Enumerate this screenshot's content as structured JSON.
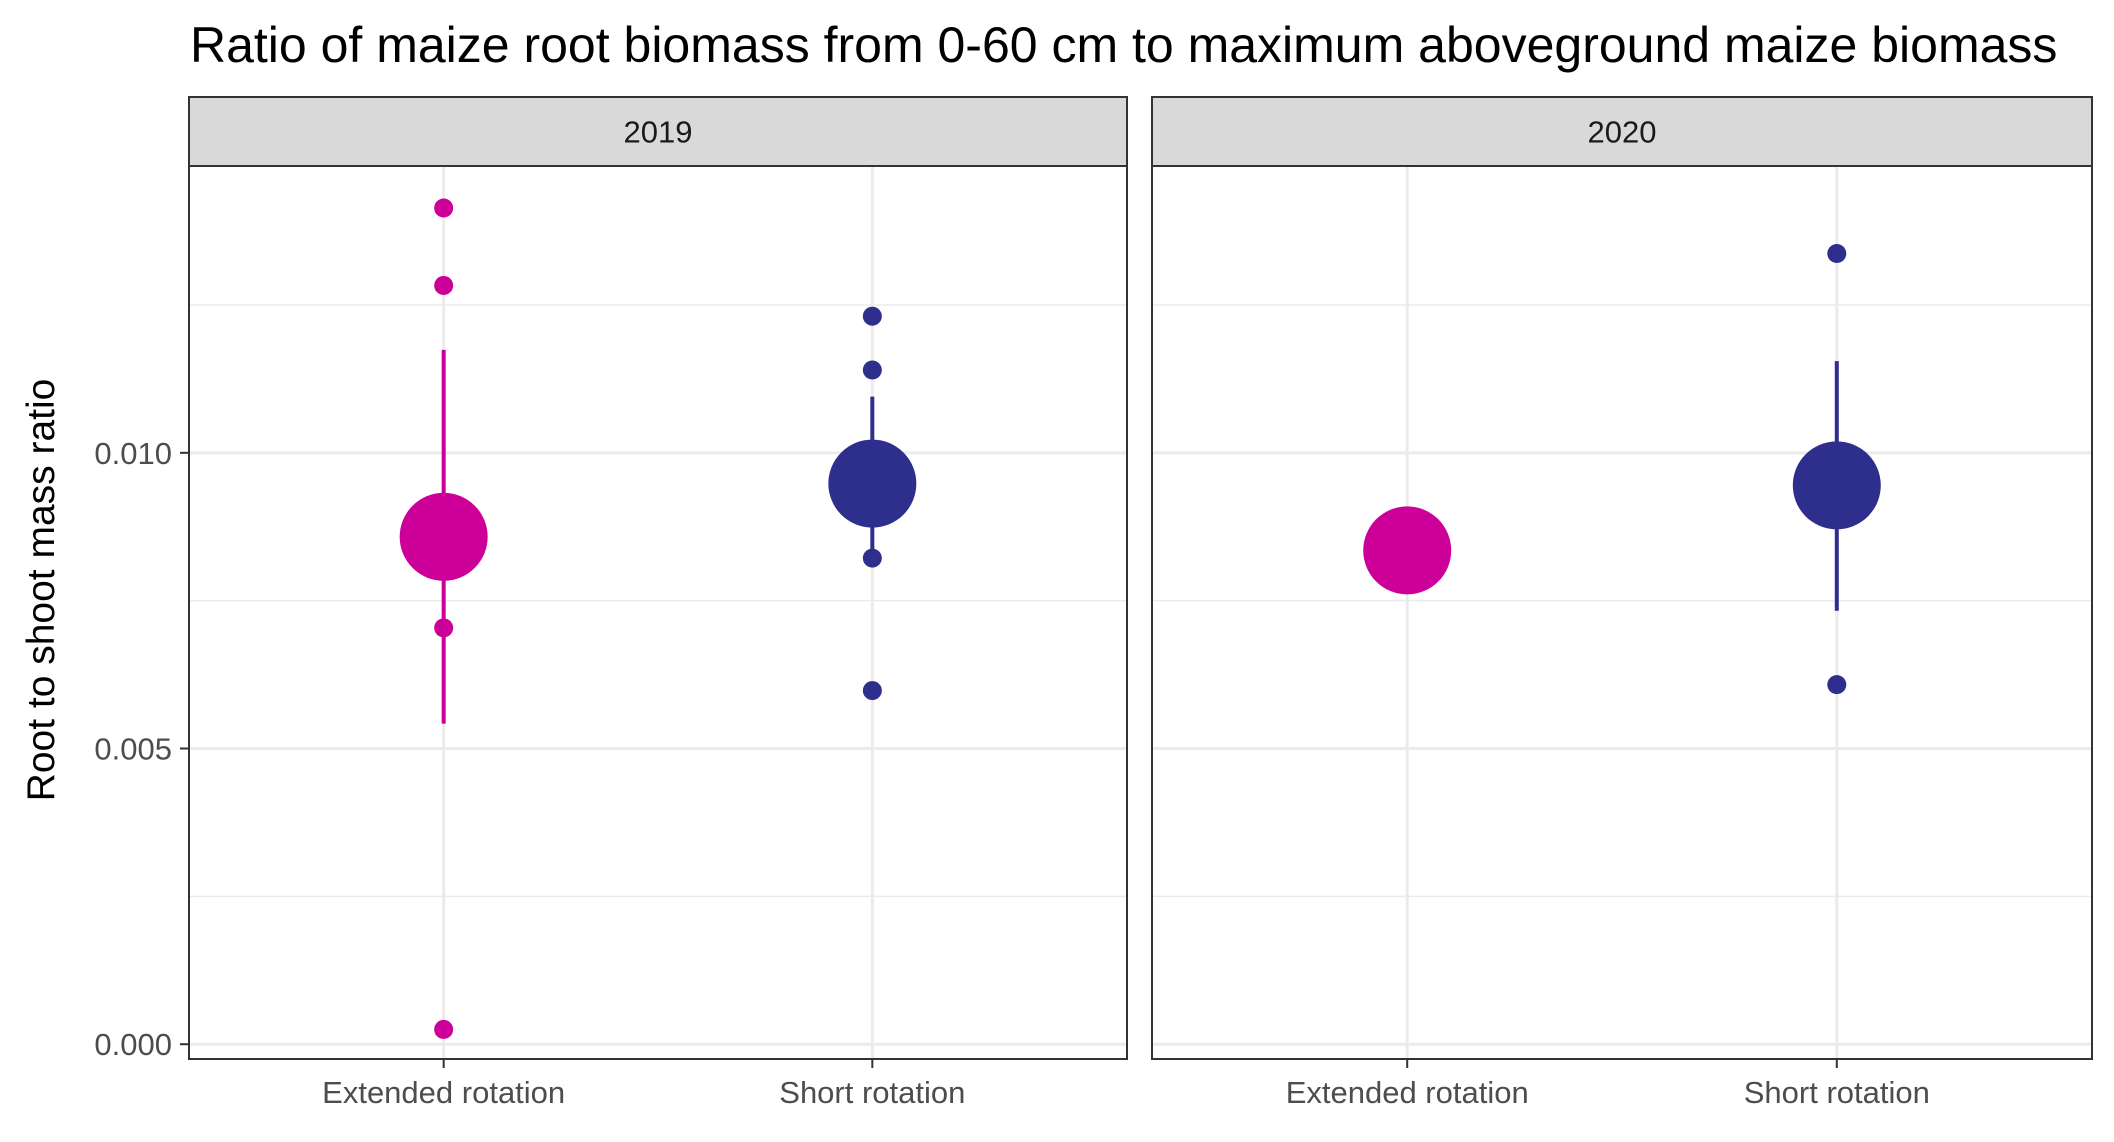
{
  "chart_data": {
    "type": "scatter",
    "title": "Ratio of maize root biomass from 0-60 cm to maximum aboveground maize biomass",
    "ylabel": "Root to shoot mass ratio",
    "xlabel": "",
    "ylim": [
      -0.00025,
      0.01485
    ],
    "yticks": [
      0.0,
      0.005,
      0.01
    ],
    "ytick_labels": [
      "0.000",
      "0.005",
      "0.010"
    ],
    "grid": true,
    "categories": [
      "Extended rotation",
      "Short rotation"
    ],
    "colors": {
      "Extended rotation": "#cc0099",
      "Short rotation": "#2e2e8c"
    },
    "panels": [
      {
        "strip_label": "2019",
        "groups": [
          {
            "category": "Extended rotation",
            "mean": 0.00858,
            "interval": [
              0.00542,
              0.01174
            ],
            "points": [
              0.01414,
              0.01283,
              0.00704,
              0.00025
            ]
          },
          {
            "category": "Short rotation",
            "mean": 0.00948,
            "interval": [
              0.00828,
              0.01095
            ],
            "points": [
              0.01231,
              0.0114,
              0.00822,
              0.00598
            ]
          }
        ]
      },
      {
        "strip_label": "2020",
        "groups": [
          {
            "category": "Extended rotation",
            "mean": 0.00835,
            "interval": null,
            "points": []
          },
          {
            "category": "Short rotation",
            "mean": 0.00945,
            "interval": [
              0.00733,
              0.01155
            ],
            "points": [
              0.01337,
              0.00608
            ]
          }
        ]
      }
    ]
  }
}
